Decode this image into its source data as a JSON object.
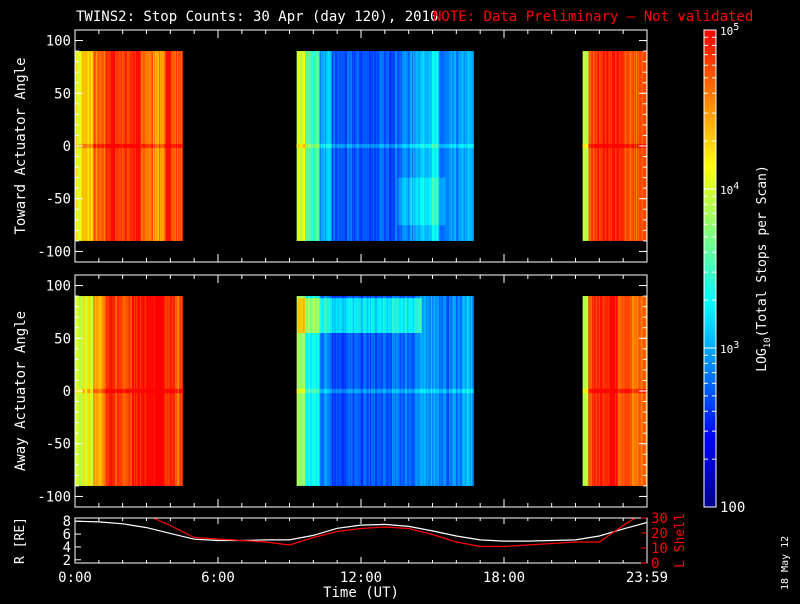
{
  "title": "TWINS2: Stop Counts: 30 Apr (day 120), 2010",
  "note": "NOTE: Data Preliminary – Not validated",
  "date_stamp": "18 May 12",
  "x_axis": {
    "label": "Time (UT)",
    "ticks": [
      "0:00",
      "6:00",
      "12:00",
      "18:00",
      "23:59"
    ]
  },
  "colors": {
    "background": "#000000",
    "axes": "#ffffff",
    "note": "#ff0000",
    "r_line": "#ffffff",
    "l_shell_line": "#ff0000"
  },
  "chart_data": [
    {
      "type": "heatmap",
      "name": "Toward",
      "ylabel": "Toward Actuator Angle",
      "ylim": [
        -110,
        110
      ],
      "y_ticks": [
        "100",
        "50",
        "0",
        "-50",
        "-100"
      ],
      "x_range_hours": [
        0,
        24
      ],
      "data_coverage_hours": [
        [
          0.0,
          4.5
        ],
        [
          9.3,
          16.7
        ],
        [
          21.3,
          24.0
        ]
      ],
      "angle_range": [
        -90,
        90
      ],
      "column_hours": [
        0.0,
        0.5,
        1.0,
        1.5,
        2.0,
        2.5,
        3.0,
        3.5,
        4.0,
        4.5,
        9.3,
        10.0,
        10.5,
        11.0,
        11.5,
        12.0,
        12.5,
        13.0,
        13.5,
        14.0,
        14.5,
        15.0,
        15.5,
        16.0,
        16.5,
        21.3,
        21.7,
        22.0,
        22.5,
        23.0,
        23.5
      ],
      "column_log10_counts": [
        4.1,
        4.3,
        4.6,
        4.9,
        4.8,
        4.9,
        4.6,
        4.5,
        4.8,
        4.7,
        4.0,
        3.5,
        3.0,
        2.7,
        2.7,
        2.7,
        2.7,
        2.7,
        2.8,
        2.9,
        3.1,
        3.2,
        2.8,
        2.9,
        3.0,
        3.9,
        4.7,
        4.9,
        4.9,
        4.8,
        4.7
      ]
    },
    {
      "type": "heatmap",
      "name": "Away",
      "ylabel": "Away Actuator Angle",
      "ylim": [
        -110,
        110
      ],
      "y_ticks": [
        "100",
        "50",
        "0",
        "-50",
        "-100"
      ],
      "x_range_hours": [
        0,
        24
      ],
      "data_coverage_hours": [
        [
          0.0,
          4.5
        ],
        [
          9.3,
          16.7
        ],
        [
          21.3,
          24.0
        ]
      ],
      "angle_range": [
        -90,
        90
      ],
      "column_hours": [
        0.0,
        0.5,
        1.0,
        1.5,
        2.0,
        2.5,
        3.0,
        3.5,
        4.0,
        4.5,
        9.3,
        10.0,
        10.5,
        11.0,
        11.5,
        12.0,
        12.5,
        13.0,
        13.5,
        14.0,
        14.5,
        15.0,
        15.5,
        16.0,
        16.5,
        21.3,
        21.7,
        22.0,
        22.5,
        23.0,
        23.5
      ],
      "column_log10_counts": [
        3.9,
        4.1,
        4.5,
        4.8,
        4.8,
        4.9,
        5.0,
        5.0,
        4.8,
        4.7,
        3.8,
        3.3,
        2.9,
        2.7,
        2.7,
        2.7,
        2.7,
        2.7,
        2.8,
        2.8,
        2.9,
        3.0,
        2.8,
        2.9,
        3.0,
        3.9,
        4.8,
        4.9,
        4.9,
        4.8,
        4.6
      ]
    },
    {
      "type": "line",
      "name": "R and L Shell",
      "ylabel": "R [RE]",
      "ylabel_right": "L Shell",
      "ylim": [
        1.5,
        8.5
      ],
      "ylim_right": [
        0,
        30
      ],
      "y_ticks": [
        "8",
        "6",
        "4",
        "2"
      ],
      "y_ticks_right": [
        "30",
        "20",
        "10",
        "0"
      ],
      "x": [
        0,
        1,
        2,
        3,
        4,
        5,
        6,
        7,
        8,
        9,
        10,
        11,
        12,
        13,
        14,
        15,
        16,
        17,
        18,
        19,
        20,
        21,
        22,
        23,
        24
      ],
      "series": [
        {
          "name": "R",
          "axis": "left",
          "values": [
            8.0,
            7.9,
            7.6,
            7.0,
            6.1,
            5.2,
            5.0,
            5.0,
            5.1,
            5.1,
            5.8,
            6.9,
            7.4,
            7.5,
            7.2,
            6.5,
            5.7,
            5.1,
            4.9,
            4.9,
            5.0,
            5.1,
            5.7,
            6.8,
            7.8
          ]
        },
        {
          "name": "L Shell",
          "axis": "right",
          "values": [
            null,
            null,
            null,
            32,
            25,
            17,
            16,
            15,
            14,
            12,
            17,
            21,
            23,
            24,
            23,
            19,
            14,
            11,
            11,
            12,
            13,
            14,
            14,
            25,
            35
          ]
        }
      ]
    }
  ],
  "colorbar": {
    "label": "LOG10(Total Stops per Scan)",
    "label_prefix": "LOG",
    "label_sub": "10",
    "label_suffix": "(Total Stops per Scan)",
    "log_range": [
      2,
      5
    ],
    "ticks": [
      {
        "log": 5,
        "label": "10",
        "sup": "5"
      },
      {
        "log": 4,
        "label": "10",
        "sup": "4"
      },
      {
        "log": 3,
        "label": "10",
        "sup": "3"
      },
      {
        "log": 2,
        "label": "100",
        "sup": ""
      }
    ],
    "colors": [
      "#00008b",
      "#0000ff",
      "#0080ff",
      "#00ffff",
      "#80ff80",
      "#ffff00",
      "#ff8000",
      "#ff0000"
    ]
  }
}
